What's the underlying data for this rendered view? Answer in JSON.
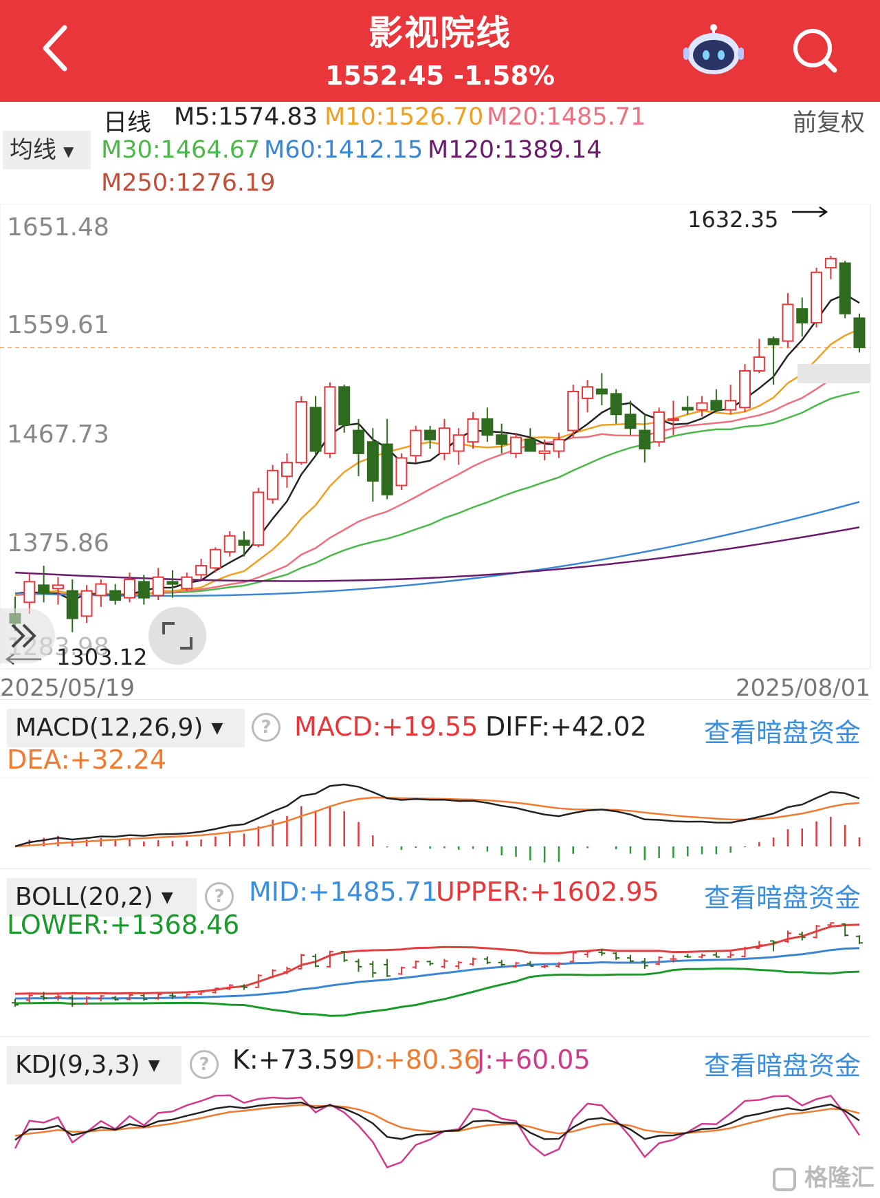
{
  "header": {
    "title": "影视院线",
    "price": "1552.45",
    "change_pct": "-1.58%"
  },
  "ma_bar": {
    "period_label": "日线",
    "mode_label": "均线",
    "adjust_label": "前复权",
    "items": [
      {
        "label": "M5:1574.83",
        "color": "#222222"
      },
      {
        "label": "M10:1526.70",
        "color": "#f0a020"
      },
      {
        "label": "M20:1485.71",
        "color": "#ef6f7f"
      },
      {
        "label": "M30:1464.67",
        "color": "#4cb84a"
      },
      {
        "label": "M60:1412.15",
        "color": "#3a86d4"
      },
      {
        "label": "M120:1389.14",
        "color": "#6a1a6a"
      },
      {
        "label": "M250:1276.19",
        "color": "#c0503a"
      }
    ]
  },
  "kline": {
    "y_labels": [
      "1651.48",
      "1559.61",
      "1467.73",
      "1375.86",
      "1283.98"
    ],
    "max_label": "1632.35",
    "min_label": "1303.12",
    "start_date": "2025/05/19",
    "end_date": "2025/08/01",
    "last_close": 1552.45
  },
  "macd": {
    "selector": "MACD(12,26,9)",
    "macd": "MACD:+19.55",
    "diff": "DIFF:+42.02",
    "dea": "DEA:+32.24",
    "link": "查看暗盘资金"
  },
  "boll": {
    "selector": "BOLL(20,2)",
    "mid": "MID:+1485.71",
    "upper": "UPPER:+1602.95",
    "lower": "LOWER:+1368.46",
    "link": "查看暗盘资金"
  },
  "kdj": {
    "selector": "KDJ(9,3,3)",
    "k": "K:+73.59",
    "d": "D:+80.36",
    "j": "J:+60.05",
    "link": "查看暗盘资金"
  },
  "watermark": "格隆汇",
  "chart_data": {
    "type": "candlestick",
    "ylim": [
      1283.98,
      1651.48
    ],
    "max": 1632.35,
    "min": 1303.12,
    "ohlc": [
      [
        1320,
        1335,
        1305,
        1312
      ],
      [
        1330,
        1355,
        1320,
        1348
      ],
      [
        1345,
        1362,
        1330,
        1338
      ],
      [
        1342,
        1352,
        1328,
        1345
      ],
      [
        1340,
        1350,
        1304,
        1316
      ],
      [
        1318,
        1345,
        1312,
        1340
      ],
      [
        1336,
        1350,
        1326,
        1346
      ],
      [
        1340,
        1346,
        1328,
        1332
      ],
      [
        1334,
        1356,
        1330,
        1350
      ],
      [
        1348,
        1354,
        1328,
        1334
      ],
      [
        1336,
        1360,
        1332,
        1352
      ],
      [
        1348,
        1358,
        1334,
        1346
      ],
      [
        1342,
        1356,
        1340,
        1352
      ],
      [
        1354,
        1368,
        1350,
        1362
      ],
      [
        1360,
        1378,
        1356,
        1376
      ],
      [
        1374,
        1392,
        1370,
        1388
      ],
      [
        1384,
        1392,
        1370,
        1380
      ],
      [
        1380,
        1430,
        1378,
        1426
      ],
      [
        1420,
        1450,
        1416,
        1445
      ],
      [
        1440,
        1460,
        1430,
        1452
      ],
      [
        1452,
        1510,
        1450,
        1505
      ],
      [
        1500,
        1510,
        1458,
        1462
      ],
      [
        1460,
        1522,
        1456,
        1518
      ],
      [
        1518,
        1520,
        1478,
        1485
      ],
      [
        1480,
        1490,
        1440,
        1460
      ],
      [
        1470,
        1482,
        1418,
        1436
      ],
      [
        1468,
        1490,
        1420,
        1424
      ],
      [
        1432,
        1460,
        1428,
        1456
      ],
      [
        1458,
        1484,
        1452,
        1480
      ],
      [
        1480,
        1484,
        1464,
        1472
      ],
      [
        1460,
        1490,
        1454,
        1482
      ],
      [
        1462,
        1482,
        1450,
        1476
      ],
      [
        1470,
        1496,
        1464,
        1490
      ],
      [
        1490,
        1500,
        1470,
        1476
      ],
      [
        1476,
        1486,
        1460,
        1468
      ],
      [
        1460,
        1478,
        1456,
        1474
      ],
      [
        1472,
        1482,
        1464,
        1462
      ],
      [
        1460,
        1472,
        1454,
        1462
      ],
      [
        1462,
        1478,
        1456,
        1472
      ],
      [
        1480,
        1520,
        1474,
        1514
      ],
      [
        1508,
        1524,
        1496,
        1518
      ],
      [
        1516,
        1530,
        1502,
        1512
      ],
      [
        1512,
        1516,
        1486,
        1494
      ],
      [
        1494,
        1506,
        1476,
        1482
      ],
      [
        1480,
        1494,
        1452,
        1464
      ],
      [
        1470,
        1500,
        1466,
        1496
      ],
      [
        1490,
        1506,
        1476,
        1490
      ],
      [
        1500,
        1510,
        1494,
        1498
      ],
      [
        1498,
        1510,
        1492,
        1504
      ],
      [
        1506,
        1516,
        1496,
        1498
      ],
      [
        1498,
        1520,
        1494,
        1506
      ],
      [
        1500,
        1538,
        1496,
        1532
      ],
      [
        1532,
        1560,
        1530,
        1544
      ],
      [
        1560,
        1562,
        1520,
        1555
      ],
      [
        1558,
        1600,
        1552,
        1590
      ],
      [
        1586,
        1596,
        1562,
        1574
      ],
      [
        1574,
        1622,
        1570,
        1618
      ],
      [
        1622,
        1632.35,
        1612,
        1630
      ],
      [
        1626,
        1628,
        1578,
        1582
      ],
      [
        1578,
        1582,
        1548,
        1552.45
      ]
    ]
  }
}
